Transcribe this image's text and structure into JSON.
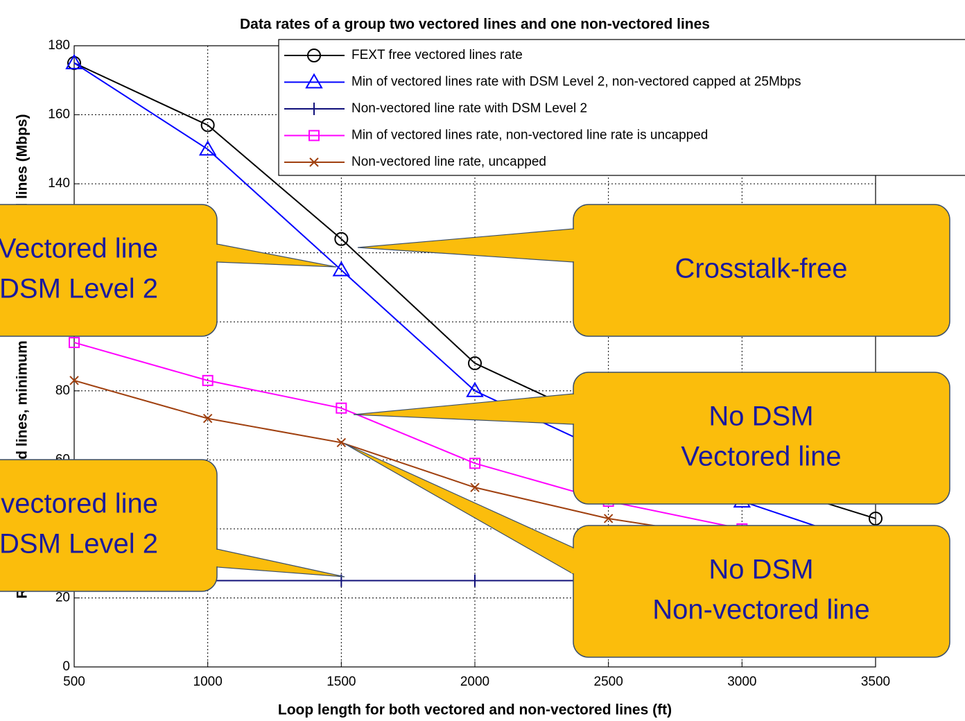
{
  "chart_data": {
    "type": "line",
    "title": "Data rates of a group two vectored lines and one non-vectored lines",
    "x_label": "Loop length for both vectored and non-vectored lines (ft)",
    "y_label": "Rates of the vectored lines, minimum of the two vectored lines (Mbps)",
    "x": [
      500,
      1000,
      1500,
      2000,
      2500,
      3000,
      3500
    ],
    "series": [
      {
        "name": "FEXT free vectored lines rate",
        "color": "#000000",
        "marker": "circle",
        "values": [
          175,
          157,
          124,
          88,
          70,
          55,
          43
        ]
      },
      {
        "name": "Min of vectored lines rate with DSM Level 2, non-vectored capped at 25Mbps",
        "color": "#0000ff",
        "marker": "triangle",
        "values": [
          175,
          150,
          115,
          80,
          62,
          48,
          35
        ]
      },
      {
        "name": "Non-vectored line rate with DSM Level 2",
        "color": "#10107a",
        "marker": "vline",
        "values": [
          25,
          25,
          25,
          25,
          25,
          25,
          25
        ]
      },
      {
        "name": "Min of vectored lines rate, non-vectored line rate is uncapped",
        "color": "#ff00ff",
        "marker": "square",
        "values": [
          94,
          83,
          75,
          59,
          48,
          40,
          33
        ]
      },
      {
        "name": "Non-vectored line rate, uncapped",
        "color": "#a0400f",
        "marker": "x",
        "values": [
          83,
          72,
          65,
          52,
          43,
          37,
          32
        ]
      }
    ],
    "xlim": [
      500,
      3500
    ],
    "ylim": [
      0,
      180
    ],
    "xticks": [
      500,
      1000,
      1500,
      2000,
      2500,
      3000,
      3500
    ],
    "yticks": [
      0,
      20,
      40,
      60,
      80,
      100,
      120,
      140,
      160,
      180
    ],
    "grid": true,
    "legend": "upper right",
    "annotations": [
      {
        "lines": [
          "Crosstalk-free"
        ]
      },
      {
        "lines": [
          "Vectored line",
          "DSM Level 2"
        ]
      },
      {
        "lines": [
          "No DSM",
          "Vectored line"
        ]
      },
      {
        "lines": [
          "No DSM",
          "Non-vectored line"
        ]
      },
      {
        "lines": [
          "Non-vectored line",
          "DSM Level 2"
        ]
      }
    ]
  }
}
